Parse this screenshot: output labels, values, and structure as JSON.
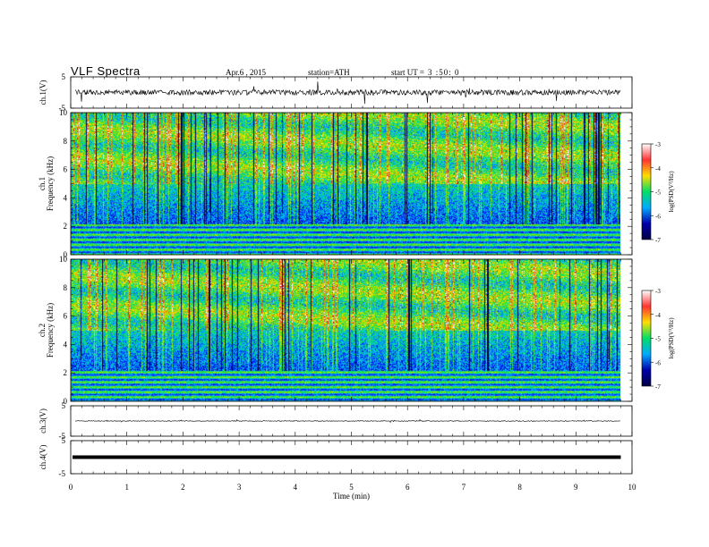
{
  "header": {
    "title": "VLF  Spectra",
    "date": "Apr.6  , 2015",
    "station": "station=ATH",
    "start_label": "start  UT =",
    "start_value": "3 :50: 0"
  },
  "colors": {
    "spectrogram_low": "#000080",
    "spectrogram_mid": "#00dd55",
    "spectrogram_high": "#dd1100",
    "trace": "#000000"
  },
  "colorbar": {
    "label": "log(PSD(V²/Hz)",
    "ticks": [
      "-3",
      "-4",
      "-5",
      "-6",
      "-7"
    ],
    "tick_values": [
      -3,
      -4,
      -5,
      -6,
      -7
    ],
    "colors": [
      "#ffffff",
      "#ff3333",
      "#ffdd00",
      "#00dd66",
      "#00aaff",
      "#0000aa",
      "#000044"
    ]
  },
  "chart_data": [
    {
      "type": "line",
      "name": "ch1-waveform",
      "ylabel": "ch.1(V)",
      "ylim": [
        -5,
        5
      ],
      "yticks": [
        "5",
        "-5"
      ],
      "xlim": [
        0,
        10
      ]
    },
    {
      "type": "heatmap",
      "name": "ch1-spectrogram",
      "ylabel_channel": "ch.1",
      "ylabel": "Frequency  (kHz)",
      "ylim": [
        0,
        10
      ],
      "yticks": [
        "0",
        "2",
        "4",
        "6",
        "8",
        "10"
      ],
      "xlim": [
        0,
        9.8
      ],
      "colorbar_range": [
        -7,
        -3
      ]
    },
    {
      "type": "heatmap",
      "name": "ch2-spectrogram",
      "ylabel_channel": "ch.2",
      "ylabel": "Frequency  (kHz)",
      "ylim": [
        0,
        10
      ],
      "yticks": [
        "0",
        "2",
        "4",
        "6",
        "8",
        "10"
      ],
      "xlim": [
        0,
        9.8
      ],
      "colorbar_range": [
        -7,
        -3
      ]
    },
    {
      "type": "line",
      "name": "ch3-waveform",
      "ylabel": "ch.3(V)",
      "ylim": [
        -5,
        5
      ],
      "yticks": [
        "5",
        "-5"
      ],
      "xlim": [
        0,
        10
      ]
    },
    {
      "type": "line",
      "name": "ch4-waveform",
      "ylabel": "ch.4(V)",
      "ylim": [
        -5,
        5
      ],
      "yticks": [
        "5",
        "-5"
      ],
      "xlim": [
        0,
        10
      ]
    }
  ],
  "xaxis": {
    "label": "Time  (min)",
    "ticks": [
      "0",
      "1",
      "2",
      "3",
      "4",
      "5",
      "6",
      "7",
      "8",
      "9",
      "10"
    ],
    "tick_values": [
      0,
      1,
      2,
      3,
      4,
      5,
      6,
      7,
      8,
      9,
      10
    ]
  }
}
